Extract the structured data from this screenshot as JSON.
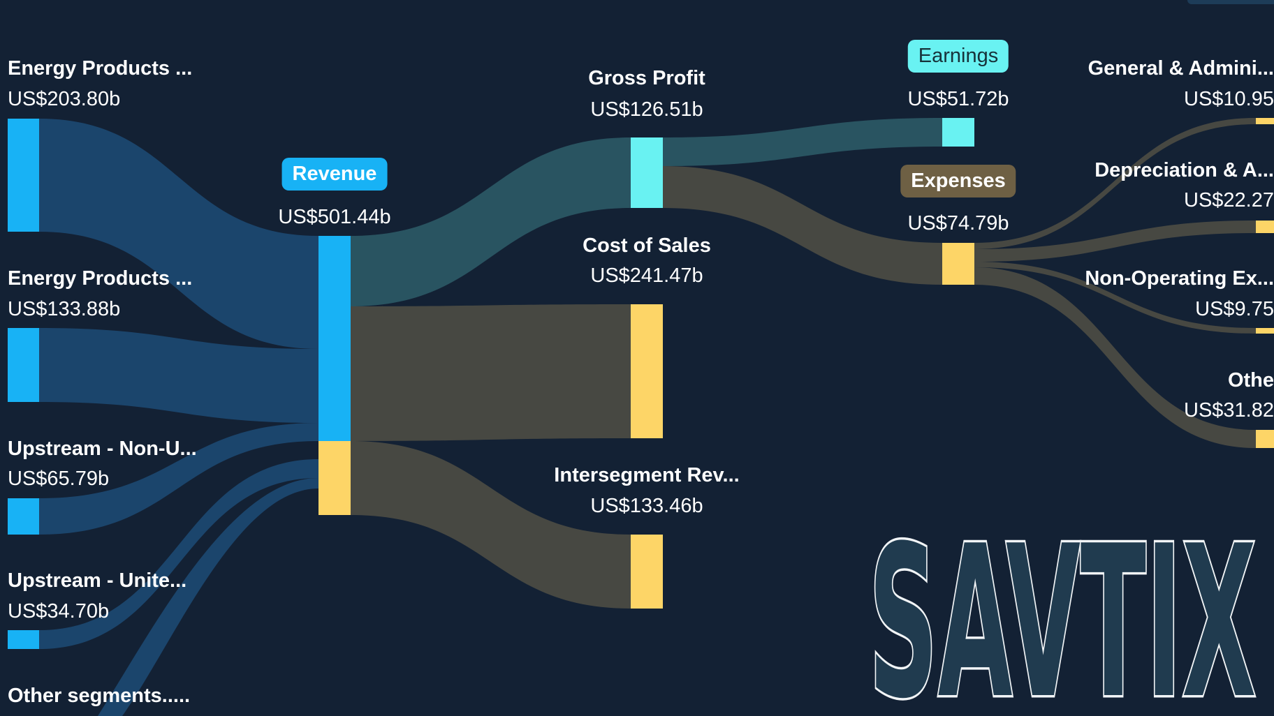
{
  "chart_data": {
    "type": "sankey",
    "unit": "US$ billions",
    "nodes": [
      {
        "id": "energy1",
        "label": "Energy Products ...",
        "value_text": "US$203.80b",
        "value": 203.8
      },
      {
        "id": "energy2",
        "label": "Energy Products ...",
        "value_text": "US$133.88b",
        "value": 133.88
      },
      {
        "id": "upnonus",
        "label": "Upstream - Non-U...",
        "value_text": "US$65.79b",
        "value": 65.79
      },
      {
        "id": "upus",
        "label": "Upstream - Unite...",
        "value_text": "US$34.70b",
        "value": 34.7
      },
      {
        "id": "other_seg",
        "label": "Other segments.....",
        "value_text": "",
        "value": null
      },
      {
        "id": "revenue",
        "label": "Revenue",
        "value_text": "US$501.44b",
        "value": 501.44
      },
      {
        "id": "gross_profit",
        "label": "Gross Profit",
        "value_text": "US$126.51b",
        "value": 126.51
      },
      {
        "id": "cost_of_sales",
        "label": "Cost of Sales",
        "value_text": "US$241.47b",
        "value": 241.47
      },
      {
        "id": "interseg",
        "label": "Intersegment Rev...",
        "value_text": "US$133.46b",
        "value": 133.46
      },
      {
        "id": "earnings",
        "label": "Earnings",
        "value_text": "US$51.72b",
        "value": 51.72
      },
      {
        "id": "expenses",
        "label": "Expenses",
        "value_text": "US$74.79b",
        "value": 74.79
      },
      {
        "id": "gna",
        "label": "General & Admini...",
        "value_text": "US$10.95",
        "value": 10.95
      },
      {
        "id": "dna",
        "label": "Depreciation & A...",
        "value_text": "US$22.27",
        "value": 22.27
      },
      {
        "id": "nonop",
        "label": "Non-Operating Ex...",
        "value_text": "US$9.75",
        "value": 9.75
      },
      {
        "id": "other_exp",
        "label": "Othe",
        "value_text": "US$31.82",
        "value": 31.82
      }
    ],
    "links": [
      {
        "source": "energy1",
        "target": "revenue",
        "value": 203.8
      },
      {
        "source": "energy2",
        "target": "revenue",
        "value": 133.88
      },
      {
        "source": "upnonus",
        "target": "revenue",
        "value": 65.79
      },
      {
        "source": "upus",
        "target": "revenue",
        "value": 34.7
      },
      {
        "source": "other_seg",
        "target": "revenue",
        "value": null
      },
      {
        "source": "revenue",
        "target": "gross_profit",
        "value": 126.51
      },
      {
        "source": "revenue",
        "target": "cost_of_sales",
        "value": 241.47
      },
      {
        "source": "revenue",
        "target": "interseg",
        "value": 133.46
      },
      {
        "source": "gross_profit",
        "target": "earnings",
        "value": 51.72
      },
      {
        "source": "gross_profit",
        "target": "expenses",
        "value": 74.79
      },
      {
        "source": "expenses",
        "target": "gna",
        "value": 10.95
      },
      {
        "source": "expenses",
        "target": "dna",
        "value": 22.27
      },
      {
        "source": "expenses",
        "target": "nonop",
        "value": 9.75
      },
      {
        "source": "expenses",
        "target": "other_exp",
        "value": 31.82
      }
    ]
  },
  "colors": {
    "background": "#132134",
    "revenue_node": "#18b2f5",
    "profit_node": "#69f2f2",
    "cost_node": "#fdd567",
    "revenue_flow": "#1d4b77",
    "profit_flow": "#2c5a66",
    "cost_flow": "#4e4c44"
  },
  "watermark": {
    "text": "SAVTIX"
  }
}
